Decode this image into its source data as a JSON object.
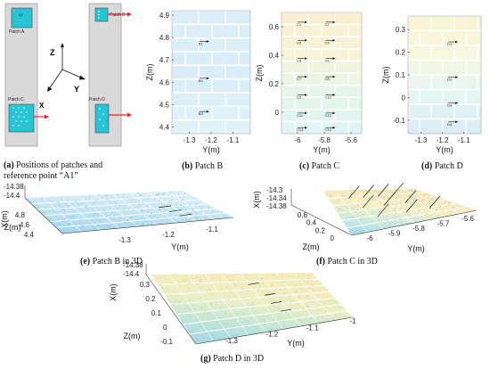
{
  "captions": {
    "a": {
      "prefix": "(a)",
      "line1": " Positions of patches and",
      "line2": "reference point “A1”"
    },
    "b": {
      "prefix": "(b)",
      "text": " Patch B"
    },
    "c": {
      "prefix": "(c)",
      "text": " Patch C"
    },
    "d": {
      "prefix": "(d)",
      "text": " Patch D"
    },
    "e": {
      "prefix": "(e)",
      "text": " Patch B in 3D"
    },
    "f": {
      "prefix": "(f)",
      "text": " Patch C in 3D"
    },
    "g": {
      "prefix": "(g)",
      "text": " Patch D in 3D"
    }
  },
  "schematic": {
    "patch_a": {
      "label": "Patch A",
      "point": "A1"
    },
    "patch_b": {
      "label": "Patch B"
    },
    "patch_c": {
      "label": "Patch C"
    },
    "patch_d": {
      "label": "Patch D"
    },
    "axes": {
      "z": "Z",
      "y": "Y",
      "x": "X"
    },
    "colors": {
      "wall": "#d9d9d9",
      "patch": "#27c4d6",
      "arrow": "#e8262b"
    }
  },
  "chart_data": [
    {
      "id": "b",
      "type": "scatter",
      "xlabel": "Y(m)",
      "ylabel": "Z(m)",
      "xticks": [
        "-1.3",
        "-1.2",
        "-1.1"
      ],
      "yticks": [
        "4.9",
        "4.8",
        "4.7",
        "4.6",
        "4.5",
        "4.4"
      ],
      "xlim": [
        -1.38,
        -1.02
      ],
      "ylim": [
        4.37,
        4.92
      ],
      "point_labels": [
        "B1",
        "B2",
        "B3"
      ]
    },
    {
      "id": "c",
      "type": "scatter",
      "xlabel": "Y(m)",
      "ylabel": "Z(m)",
      "xticks": [
        "-6",
        "-5.8",
        "-5.6"
      ],
      "yticks": [
        "0.6",
        "0.4",
        "0.2",
        "0"
      ],
      "xlim": [
        -6.12,
        -5.52
      ],
      "ylim": [
        -0.15,
        0.7
      ],
      "point_labels": [
        "C1",
        "C2",
        "C3",
        "C4",
        "C5",
        "C6",
        "C7",
        "C8",
        "C9",
        "C10",
        "C11",
        "C12",
        "C13",
        "C14"
      ]
    },
    {
      "id": "d",
      "type": "scatter",
      "xlabel": "Y(m)",
      "ylabel": "Z(m)",
      "xticks": [
        "-1.3",
        "-1.2",
        "-1.1"
      ],
      "yticks": [
        "0.3",
        "0.2",
        "0.1",
        "0",
        "-0.1"
      ],
      "xlim": [
        -1.36,
        -1.02
      ],
      "ylim": [
        -0.16,
        0.36
      ],
      "point_labels": [
        "D1",
        "D2",
        "D3",
        "D4"
      ]
    },
    {
      "id": "e",
      "type": "scatter",
      "xlabel": "Y(m)",
      "ylabel": "Z(m)",
      "zlabel": "X(m)",
      "xticks": [
        "-1.3",
        "-1.2",
        "-1.1"
      ],
      "yticks": [
        "4.8",
        "4.6",
        "4.4"
      ],
      "zticks": [
        "-14.38",
        "-14.4"
      ]
    },
    {
      "id": "f",
      "type": "scatter",
      "xlabel": "Y(m)",
      "ylabel": "Z(m)",
      "zlabel": "X(m)",
      "xticks": [
        "-6",
        "-5.9",
        "-5.8",
        "-5.7",
        "-5.6"
      ],
      "yticks": [
        "0.6",
        "0.4",
        "0.2",
        "0"
      ],
      "zticks": [
        "-14.3",
        "-14.34",
        "-14.38"
      ]
    },
    {
      "id": "g",
      "type": "scatter",
      "xlabel": "Y(m)",
      "ylabel": "Z(m)",
      "zlabel": "X(m)",
      "xticks": [
        "-1.3",
        "-1.2",
        "-1.1",
        "-1"
      ],
      "yticks": [
        "0.3",
        "0.2",
        "0.1",
        "0",
        "-0.1"
      ],
      "zticks": [
        "-14.38",
        "-14.4"
      ]
    }
  ]
}
